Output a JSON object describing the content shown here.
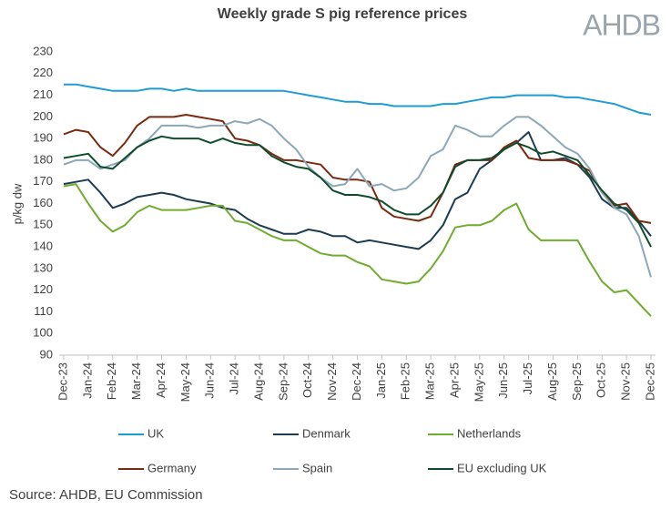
{
  "chart_data": {
    "type": "line",
    "title": "Weekly grade S pig reference prices",
    "logo": "AHDB",
    "y_label": "p/kg dw",
    "source": "Source: AHDB, EU Commission",
    "categories": [
      "Dec-23",
      null,
      "Jan-24",
      null,
      "Feb-24",
      null,
      "Mar-24",
      null,
      "Apr-24",
      null,
      "May-24",
      null,
      "Jun-24",
      null,
      "Jul-24",
      null,
      "Aug-24",
      null,
      "Sep-24",
      null,
      "Oct-24",
      null,
      "Nov-24",
      null,
      "Dec-24",
      null,
      "Jan-25",
      null,
      "Feb-25",
      null,
      "Mar-25",
      null,
      "Apr-25",
      null,
      "May-25",
      null,
      "Jun-25",
      null,
      "Jul-25",
      null,
      "Aug-25",
      null,
      "Sep-25",
      null,
      "Oct-25",
      null,
      "Nov-25",
      null,
      "Dec-25"
    ],
    "ylim": [
      90,
      230
    ],
    "yticks": [
      90,
      100,
      110,
      120,
      130,
      140,
      150,
      160,
      170,
      180,
      190,
      200,
      210,
      220,
      230
    ],
    "grid": false,
    "series": [
      {
        "name": "UK",
        "color": "#1f9bd7",
        "values": [
          215,
          215,
          214,
          213,
          212,
          212,
          212,
          213,
          213,
          212,
          213,
          212,
          212,
          212,
          212,
          212,
          212,
          212,
          212,
          211,
          210,
          209,
          208,
          207,
          207,
          206,
          206,
          205,
          205,
          205,
          205,
          206,
          206,
          207,
          208,
          209,
          209,
          210,
          210,
          210,
          210,
          209,
          209,
          208,
          207,
          206,
          204,
          202,
          201
        ]
      },
      {
        "name": "Denmark",
        "color": "#1d3c52",
        "values": [
          169,
          170,
          171,
          165,
          158,
          160,
          163,
          164,
          165,
          164,
          162,
          161,
          160,
          158,
          157,
          153,
          150,
          148,
          146,
          146,
          148,
          147,
          145,
          145,
          142,
          143,
          142,
          141,
          140,
          139,
          143,
          150,
          162,
          165,
          176,
          180,
          185,
          188,
          193,
          180,
          180,
          181,
          178,
          172,
          162,
          158,
          158,
          152,
          145
        ]
      },
      {
        "name": "Netherlands",
        "color": "#6fac2f",
        "values": [
          168,
          169,
          160,
          152,
          147,
          150,
          156,
          159,
          157,
          157,
          157,
          158,
          159,
          159,
          152,
          151,
          148,
          145,
          143,
          143,
          140,
          137,
          136,
          136,
          133,
          131,
          125,
          124,
          123,
          124,
          130,
          138,
          149,
          150,
          150,
          152,
          157,
          160,
          148,
          143,
          143,
          143,
          143,
          133,
          124,
          119,
          120,
          114,
          108
        ]
      },
      {
        "name": "Germany",
        "color": "#7a2a0e",
        "values": [
          192,
          194,
          193,
          186,
          182,
          188,
          196,
          200,
          200,
          200,
          201,
          200,
          199,
          198,
          190,
          189,
          187,
          183,
          180,
          180,
          179,
          178,
          172,
          171,
          171,
          170,
          158,
          154,
          153,
          152,
          154,
          165,
          178,
          180,
          180,
          180,
          186,
          189,
          181,
          180,
          180,
          180,
          178,
          175,
          165,
          159,
          160,
          152,
          151
        ]
      },
      {
        "name": "Spain",
        "color": "#8ca7b8",
        "values": [
          178,
          180,
          180,
          176,
          178,
          180,
          186,
          190,
          196,
          196,
          196,
          195,
          196,
          196,
          198,
          197,
          199,
          196,
          190,
          185,
          177,
          172,
          168,
          169,
          176,
          168,
          169,
          166,
          167,
          172,
          182,
          185,
          196,
          194,
          191,
          191,
          196,
          200,
          200,
          196,
          191,
          186,
          183,
          176,
          165,
          158,
          155,
          145,
          126
        ]
      },
      {
        "name": "EU excluding UK",
        "color": "#0e4d2b",
        "values": [
          181,
          182,
          183,
          177,
          176,
          181,
          186,
          189,
          191,
          190,
          190,
          190,
          188,
          190,
          188,
          187,
          187,
          182,
          179,
          177,
          176,
          172,
          166,
          164,
          164,
          163,
          161,
          157,
          155,
          155,
          159,
          165,
          177,
          180,
          180,
          181,
          185,
          188,
          186,
          183,
          184,
          182,
          180,
          173,
          166,
          160,
          157,
          151,
          140
        ]
      }
    ]
  }
}
